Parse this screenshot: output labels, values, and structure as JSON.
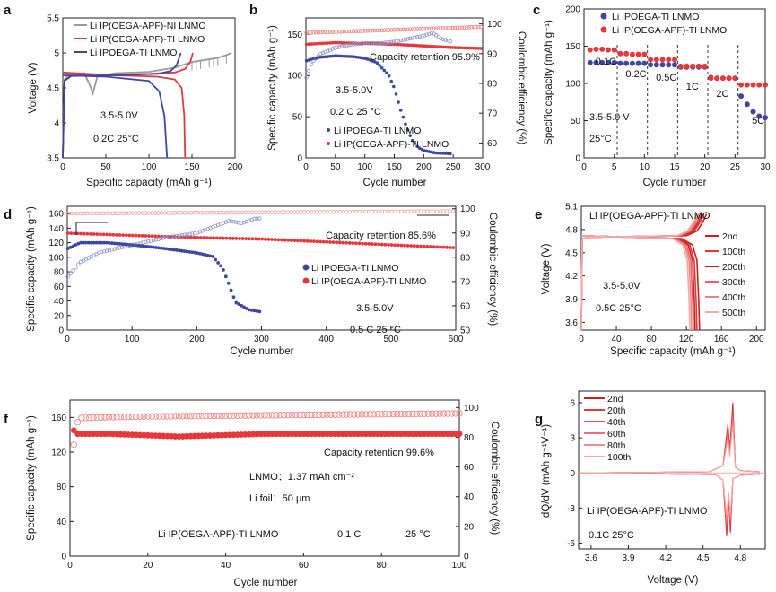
{
  "chart_data": [
    {
      "panel": "a",
      "type": "line",
      "xlabel": "Specific capacity (mAh g⁻¹)",
      "ylabel": "Voltage (V)",
      "xlim": [
        0,
        200
      ],
      "ylim": [
        3.5,
        5.5
      ],
      "xticks": [
        0,
        50,
        100,
        150,
        200
      ],
      "yticks": [
        3.5,
        4.0,
        4.5,
        5.0,
        5.5
      ],
      "annotation": "3.5-5.0V",
      "condition": "0.2C  25°C",
      "series": [
        {
          "name": "Li IP(OEGA-APF)-NI LNMO",
          "color": "#999999",
          "charge": [
            [
              0,
              3.5
            ],
            [
              2,
              4.62
            ],
            [
              8,
              4.7
            ],
            [
              25,
              4.71
            ],
            [
              31,
              4.55
            ],
            [
              35,
              4.42
            ],
            [
              40,
              4.66
            ],
            [
              60,
              4.71
            ],
            [
              100,
              4.73
            ],
            [
              130,
              4.79
            ],
            [
              150,
              4.87
            ],
            [
              165,
              4.9
            ],
            [
              180,
              4.93
            ],
            [
              190,
              4.97
            ],
            [
              196,
              5.0
            ]
          ],
          "discharge": []
        },
        {
          "name": "Li IP(OEGA-APF)-TI LNMO",
          "color": "#e8373a",
          "charge": [
            [
              0,
              3.5
            ],
            [
              2,
              4.6
            ],
            [
              10,
              4.68
            ],
            [
              60,
              4.69
            ],
            [
              100,
              4.7
            ],
            [
              130,
              4.72
            ],
            [
              142,
              4.77
            ],
            [
              148,
              4.87
            ],
            [
              151,
              5.0
            ]
          ],
          "discharge": [
            [
              0,
              4.72
            ],
            [
              60,
              4.68
            ],
            [
              110,
              4.66
            ],
            [
              130,
              4.62
            ],
            [
              138,
              4.5
            ],
            [
              141,
              4.1
            ],
            [
              142,
              3.5
            ]
          ]
        },
        {
          "name": "Li IPOEGA-TI LNMO",
          "color": "#3c47a3",
          "charge": [
            [
              0,
              3.5
            ],
            [
              2,
              4.6
            ],
            [
              10,
              4.67
            ],
            [
              60,
              4.68
            ],
            [
              110,
              4.7
            ],
            [
              125,
              4.74
            ],
            [
              132,
              4.82
            ],
            [
              137,
              5.0
            ]
          ],
          "discharge": [
            [
              0,
              4.68
            ],
            [
              50,
              4.66
            ],
            [
              100,
              4.6
            ],
            [
              112,
              4.45
            ],
            [
              118,
              4.1
            ],
            [
              121,
              3.5
            ]
          ]
        }
      ]
    },
    {
      "panel": "b",
      "type": "scatter",
      "xlabel": "Cycle number",
      "ylabel": "Specific capacity (mAh g⁻¹)",
      "ylabel_right": "Coulombic efficiency (%)",
      "xlim": [
        0,
        300
      ],
      "ylim": [
        0,
        170
      ],
      "ylim_right": [
        55,
        102
      ],
      "xticks": [
        0,
        50,
        100,
        150,
        200,
        250,
        300
      ],
      "yticks": [
        0,
        50,
        100,
        150
      ],
      "yticks_right": [
        60,
        70,
        80,
        90,
        100
      ],
      "annotation": "3.5-5.0V",
      "condition": "0.2 C  25 °C",
      "retention": "Capacity retention 95.9%",
      "series": [
        {
          "name": "Li IPOEGA-TI LNMO",
          "color": "#3c47a3",
          "capacity": [
            [
              1,
              118
            ],
            [
              20,
              122
            ],
            [
              50,
              124
            ],
            [
              80,
              123
            ],
            [
              100,
              121
            ],
            [
              120,
              116
            ],
            [
              140,
              101
            ],
            [
              150,
              85
            ],
            [
              160,
              60
            ],
            [
              170,
              39
            ],
            [
              180,
              22
            ],
            [
              190,
              13
            ],
            [
              200,
              9
            ],
            [
              220,
              6
            ],
            [
              248,
              5
            ]
          ],
          "ce": [
            [
              1,
              82
            ],
            [
              10,
              87
            ],
            [
              25,
              90
            ],
            [
              50,
              92
            ],
            [
              75,
              93
            ],
            [
              100,
              93.5
            ],
            [
              125,
              93.5
            ],
            [
              150,
              94
            ],
            [
              175,
              95
            ],
            [
              200,
              96
            ],
            [
              215,
              97
            ],
            [
              230,
              95
            ],
            [
              248,
              94
            ]
          ]
        },
        {
          "name": "Li IP(OEGA-APF)-TI LNMO",
          "color": "#e8373a",
          "capacity": [
            [
              1,
              138
            ],
            [
              50,
              140
            ],
            [
              100,
              139
            ],
            [
              150,
              138
            ],
            [
              200,
              136
            ],
            [
              250,
              134
            ],
            [
              300,
              133
            ]
          ],
          "ce": [
            [
              1,
              97
            ],
            [
              300,
              99
            ]
          ]
        }
      ]
    },
    {
      "panel": "c",
      "type": "scatter",
      "xlabel": "Cycle number",
      "ylabel": "Specific capacity (mAh g⁻¹)",
      "xlim": [
        0,
        30
      ],
      "ylim": [
        0,
        200
      ],
      "xticks": [
        0,
        5,
        10,
        15,
        20,
        25,
        30
      ],
      "yticks": [
        0,
        50,
        100,
        150,
        200
      ],
      "annotation": "3.5-5.0 V",
      "condition": "25°C",
      "rates": [
        "0.1C",
        "0.2C",
        "0.5C",
        "1C",
        "2C",
        "5C"
      ],
      "series": [
        {
          "name": "Li IPOEGA-TI LNMO",
          "color": "#3c47a3",
          "values": [
            128,
            128,
            128,
            128,
            128,
            127,
            127,
            127,
            127,
            127,
            125,
            125,
            125,
            125,
            125,
            122,
            122,
            122,
            122,
            122,
            108,
            107,
            107,
            107,
            107,
            83,
            72,
            62,
            56,
            54
          ]
        },
        {
          "name": "Li IP(OEGA-APF)-TI LNMO",
          "color": "#e8373a",
          "values": [
            145,
            146,
            146,
            145,
            145,
            140,
            140,
            139,
            139,
            139,
            132,
            132,
            132,
            132,
            132,
            123,
            123,
            123,
            123,
            123,
            107,
            107,
            107,
            107,
            107,
            98,
            98,
            98,
            98,
            98
          ]
        }
      ]
    },
    {
      "panel": "d",
      "type": "scatter",
      "xlabel": "Cycle number",
      "ylabel": "Specific capacity (mAh g⁻¹)",
      "ylabel_right": "Coulombic efficiency (%)",
      "xlim": [
        0,
        600
      ],
      "ylim": [
        0,
        170
      ],
      "ylim_right": [
        50,
        101
      ],
      "xticks": [
        0,
        100,
        200,
        300,
        400,
        500,
        600
      ],
      "yticks": [
        0,
        20,
        40,
        60,
        80,
        100,
        120,
        140,
        160
      ],
      "yticks_right": [
        50,
        60,
        70,
        80,
        90,
        100
      ],
      "annotation": "3.5-5.0V",
      "condition": "0.5 C  25 °C",
      "retention": "Capacity retention 85.6%",
      "series": [
        {
          "name": "Li IPOEGA-TI LNMO",
          "color": "#3c47a3",
          "capacity": [
            [
              1,
              112
            ],
            [
              20,
              120
            ],
            [
              60,
              120
            ],
            [
              100,
              117
            ],
            [
              150,
              112
            ],
            [
              200,
              106
            ],
            [
              225,
              101
            ],
            [
              240,
              85
            ],
            [
              250,
              62
            ],
            [
              260,
              38
            ],
            [
              280,
              28
            ],
            [
              300,
              25
            ]
          ],
          "ce": [
            [
              1,
              72
            ],
            [
              20,
              78
            ],
            [
              50,
              82
            ],
            [
              100,
              85
            ],
            [
              150,
              88
            ],
            [
              200,
              90
            ],
            [
              230,
              93
            ],
            [
              250,
              95
            ],
            [
              270,
              94
            ],
            [
              290,
              96
            ]
          ]
        },
        {
          "name": "Li IP(OEGA-APF)-TI LNMO",
          "color": "#e8373a",
          "capacity": [
            [
              1,
              133
            ],
            [
              100,
              130
            ],
            [
              200,
              127
            ],
            [
              300,
              125
            ],
            [
              400,
              121
            ],
            [
              500,
              117
            ],
            [
              600,
              113
            ]
          ],
          "ce": [
            [
              1,
              98
            ],
            [
              600,
              99
            ]
          ]
        }
      ]
    },
    {
      "panel": "e",
      "type": "line",
      "title": "Li IP(OEGA-APF)-TI LNMO",
      "xlabel": "Specific capacity (mAh g⁻¹)",
      "ylabel": "Voltage (V)",
      "xlim": [
        0,
        210
      ],
      "ylim": [
        3.5,
        5.1
      ],
      "xticks": [
        0,
        40,
        80,
        120,
        160,
        200
      ],
      "yticks": [
        3.6,
        3.9,
        4.2,
        4.5,
        4.8,
        5.1
      ],
      "annotation": "3.5-5.0V",
      "condition": "0.5C  25°C",
      "series": [
        {
          "name": "2nd",
          "color": "#d7191c",
          "end": 135
        },
        {
          "name": "100th",
          "color": "#de3a3a",
          "end": 132
        },
        {
          "name": "200th",
          "color": "#c8202b",
          "end": 130
        },
        {
          "name": "300th",
          "color": "#e46464",
          "end": 128
        },
        {
          "name": "400th",
          "color": "#ea8585",
          "end": 126
        },
        {
          "name": "500th",
          "color": "#f2aaaa",
          "end": 124
        }
      ]
    },
    {
      "panel": "f",
      "type": "scatter",
      "xlabel": "Cycle number",
      "ylabel": "Specific capacity (mAh g⁻¹)",
      "ylabel_right": "Coulombic efficiency (%)",
      "xlim": [
        0,
        100
      ],
      "ylim": [
        0,
        180
      ],
      "ylim_right": [
        0,
        105
      ],
      "xticks": [
        0,
        20,
        40,
        60,
        80,
        100
      ],
      "yticks": [
        0,
        40,
        80,
        120,
        160
      ],
      "yticks_right": [
        0,
        20,
        40,
        60,
        80,
        100
      ],
      "retention": "Capacity retention 99.6%",
      "loading": "LNMO：1.37 mAh cm⁻²",
      "foil": "Li   foil：50 μm",
      "cell": "Li IP(OEGA-APF)-TI LNMO",
      "rate": "0.1 C",
      "temp": "25 °C",
      "series": [
        {
          "name": "Capacity",
          "color": "#e8373a",
          "values": [
            [
              1,
              145
            ],
            [
              2,
              141
            ],
            [
              10,
              141
            ],
            [
              28,
              138
            ],
            [
              50,
              141
            ],
            [
              100,
              141
            ]
          ]
        },
        {
          "name": "Coulombic efficiency",
          "color": "#e8373a",
          "values": [
            [
              1,
              75
            ],
            [
              2,
              90
            ],
            [
              3,
              93
            ],
            [
              20,
              94
            ],
            [
              60,
              95
            ],
            [
              100,
              96
            ]
          ]
        }
      ]
    },
    {
      "panel": "g",
      "type": "line",
      "xlabel": "Voltage (V)",
      "ylabel": "dQ/dV (mAh g⁻¹V⁻¹)",
      "xlim": [
        3.5,
        5.0
      ],
      "ylim": [
        -6.5,
        7
      ],
      "xticks": [
        3.6,
        3.9,
        4.2,
        4.5,
        4.8
      ],
      "yticks": [
        -6,
        -3,
        0,
        3,
        6
      ],
      "title": "Li IP(OEGA-APF)-TI LNMO",
      "condition": "0.1C  25°C",
      "series": [
        {
          "name": "2nd",
          "color": "#d7191c",
          "peak": 6.0
        },
        {
          "name": "20th",
          "color": "#e23b3b",
          "peak": 5.6
        },
        {
          "name": "40th",
          "color": "#e85050",
          "peak": 5.2
        },
        {
          "name": "60th",
          "color": "#ee7070",
          "peak": 4.8
        },
        {
          "name": "80th",
          "color": "#f28c8c",
          "peak": 4.4
        },
        {
          "name": "100th",
          "color": "#f6a8a8",
          "peak": 4.0
        }
      ]
    }
  ]
}
